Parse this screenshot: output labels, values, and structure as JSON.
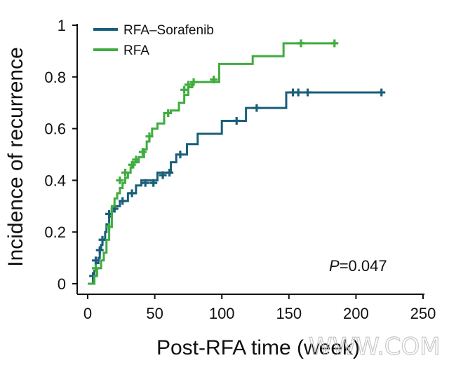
{
  "chart_data": {
    "type": "line",
    "title": "",
    "xlabel": "Post-RFA time (week)",
    "ylabel": "Incidence of recurrence",
    "xlim": [
      0,
      250
    ],
    "ylim": [
      0,
      1
    ],
    "x_ticks": [
      0,
      50,
      100,
      150,
      200,
      250
    ],
    "y_ticks": [
      0,
      0.2,
      0.4,
      0.6,
      0.8,
      1
    ],
    "x_tick_labels": [
      "0",
      "50",
      "100",
      "150",
      "200",
      "250"
    ],
    "y_tick_labels": [
      "0",
      "0.2",
      "0.4",
      "0.6",
      "0.8",
      "1"
    ],
    "grid": false,
    "legend_position": "top-left",
    "annotation": {
      "italic": "P",
      "text": "=0.047"
    },
    "watermark": "WWW.COM",
    "series": [
      {
        "name": "RFA–Sorafenib",
        "color": "#1a5f7a",
        "steps": [
          [
            0,
            0
          ],
          [
            4,
            0.03
          ],
          [
            5,
            0.05
          ],
          [
            6,
            0.08
          ],
          [
            8,
            0.1
          ],
          [
            9,
            0.13
          ],
          [
            10,
            0.15
          ],
          [
            11,
            0.17
          ],
          [
            13,
            0.2
          ],
          [
            14,
            0.23
          ],
          [
            16,
            0.26
          ],
          [
            18,
            0.28
          ],
          [
            20,
            0.3
          ],
          [
            24,
            0.32
          ],
          [
            30,
            0.35
          ],
          [
            36,
            0.38
          ],
          [
            40,
            0.4
          ],
          [
            52,
            0.43
          ],
          [
            62,
            0.47
          ],
          [
            66,
            0.5
          ],
          [
            74,
            0.54
          ],
          [
            82,
            0.58
          ],
          [
            100,
            0.63
          ],
          [
            118,
            0.68
          ],
          [
            148,
            0.74
          ],
          [
            220,
            0.74
          ]
        ],
        "censored": [
          [
            4,
            0.03
          ],
          [
            6,
            0.09
          ],
          [
            9,
            0.13
          ],
          [
            11,
            0.17
          ],
          [
            16,
            0.27
          ],
          [
            20,
            0.29
          ],
          [
            26,
            0.32
          ],
          [
            33,
            0.35
          ],
          [
            43,
            0.39
          ],
          [
            49,
            0.39
          ],
          [
            56,
            0.42
          ],
          [
            61,
            0.43
          ],
          [
            69,
            0.5
          ],
          [
            111,
            0.63
          ],
          [
            126,
            0.68
          ],
          [
            153,
            0.74
          ],
          [
            157,
            0.74
          ],
          [
            164,
            0.74
          ],
          [
            219,
            0.74
          ]
        ]
      },
      {
        "name": "RFA",
        "color": "#3fac3f",
        "steps": [
          [
            0,
            0
          ],
          [
            5,
            0.03
          ],
          [
            7,
            0.06
          ],
          [
            10,
            0.09
          ],
          [
            12,
            0.12
          ],
          [
            14,
            0.17
          ],
          [
            16,
            0.22
          ],
          [
            18,
            0.3
          ],
          [
            20,
            0.33
          ],
          [
            22,
            0.35
          ],
          [
            24,
            0.37
          ],
          [
            26,
            0.39
          ],
          [
            28,
            0.41
          ],
          [
            30,
            0.43
          ],
          [
            32,
            0.45
          ],
          [
            34,
            0.47
          ],
          [
            38,
            0.49
          ],
          [
            42,
            0.52
          ],
          [
            44,
            0.55
          ],
          [
            46,
            0.57
          ],
          [
            48,
            0.6
          ],
          [
            52,
            0.62
          ],
          [
            57,
            0.66
          ],
          [
            62,
            0.67
          ],
          [
            68,
            0.7
          ],
          [
            72,
            0.73
          ],
          [
            75,
            0.76
          ],
          [
            78,
            0.78
          ],
          [
            98,
            0.85
          ],
          [
            123,
            0.88
          ],
          [
            146,
            0.93
          ],
          [
            184,
            0.93
          ]
        ],
        "censored": [
          [
            6,
            0.06
          ],
          [
            16,
            0.22
          ],
          [
            24,
            0.4
          ],
          [
            28,
            0.43
          ],
          [
            33,
            0.46
          ],
          [
            36,
            0.48
          ],
          [
            41,
            0.51
          ],
          [
            46,
            0.57
          ],
          [
            60,
            0.66
          ],
          [
            72,
            0.75
          ],
          [
            75,
            0.77
          ],
          [
            79,
            0.78
          ],
          [
            94,
            0.79
          ],
          [
            159,
            0.93
          ],
          [
            184,
            0.93
          ]
        ]
      }
    ]
  }
}
